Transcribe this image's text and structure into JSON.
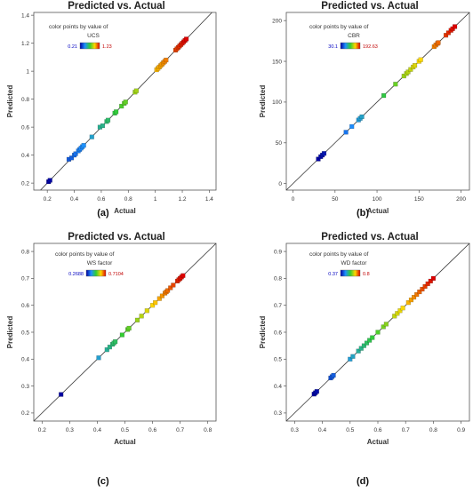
{
  "chart_data": [
    {
      "type": "scatter",
      "panel_label": "(a)",
      "title": "Predicted vs. Actual",
      "xlabel": "Actual",
      "ylabel": "Predicted",
      "xlim": [
        0.1,
        1.45
      ],
      "ylim": [
        0.15,
        1.42
      ],
      "xticks": [
        "0.2",
        "0.4",
        "0.6",
        "0.8",
        "1",
        "1.2",
        "1.4"
      ],
      "yticks": [
        "0.2",
        "0.4",
        "0.6",
        "0.8",
        "1",
        "1.2",
        "1.4"
      ],
      "xtick_values": [
        0.2,
        0.4,
        0.6,
        0.8,
        1.0,
        1.2,
        1.4
      ],
      "ytick_values": [
        0.2,
        0.4,
        0.6,
        0.8,
        1.0,
        1.2,
        1.4
      ],
      "legend_title_1": "color points by value of",
      "legend_title_2": "UCS",
      "colorbar_min": "0.21",
      "colorbar_max": "1.23",
      "cmin": 0.21,
      "cmax": 1.23,
      "x": [
        0.21,
        0.22,
        0.36,
        0.38,
        0.4,
        0.41,
        0.43,
        0.44,
        0.45,
        0.46,
        0.47,
        0.53,
        0.59,
        0.61,
        0.64,
        0.65,
        0.7,
        0.71,
        0.75,
        0.77,
        0.78,
        0.85,
        0.86,
        1.01,
        1.02,
        1.03,
        1.04,
        1.05,
        1.06,
        1.07,
        1.08,
        1.15,
        1.16,
        1.17,
        1.18,
        1.19,
        1.2,
        1.21,
        1.22,
        1.23
      ],
      "y": [
        0.21,
        0.22,
        0.37,
        0.38,
        0.4,
        0.41,
        0.43,
        0.44,
        0.45,
        0.46,
        0.47,
        0.53,
        0.6,
        0.61,
        0.64,
        0.65,
        0.7,
        0.71,
        0.75,
        0.77,
        0.78,
        0.85,
        0.86,
        1.01,
        1.02,
        1.03,
        1.04,
        1.05,
        1.06,
        1.07,
        1.08,
        1.15,
        1.16,
        1.17,
        1.18,
        1.19,
        1.2,
        1.21,
        1.22,
        1.23
      ]
    },
    {
      "type": "scatter",
      "panel_label": "(b)",
      "title": "Predicted vs. Actual",
      "xlabel": "Actual",
      "ylabel": "Predicted",
      "xlim": [
        -8,
        210
      ],
      "ylim": [
        -8,
        210
      ],
      "xticks": [
        "0",
        "50",
        "100",
        "150",
        "200"
      ],
      "yticks": [
        "0",
        "50",
        "100",
        "150",
        "200"
      ],
      "xtick_values": [
        0,
        50,
        100,
        150,
        200
      ],
      "ytick_values": [
        0,
        50,
        100,
        150,
        200
      ],
      "legend_title_1": "color points by value of",
      "legend_title_2": "CBR",
      "colorbar_min": "30.1",
      "colorbar_max": "192.63",
      "cmin": 30.1,
      "cmax": 192.63,
      "x": [
        30.1,
        33,
        35,
        37,
        63,
        70,
        78,
        80,
        82,
        108,
        122,
        132,
        135,
        137,
        140,
        143,
        145,
        150,
        152,
        168,
        170,
        172,
        173,
        182,
        185,
        188,
        190,
        192.63
      ],
      "y": [
        30.1,
        33,
        35,
        37,
        63,
        70,
        78,
        80,
        82,
        108,
        122,
        132,
        135,
        137,
        140,
        143,
        145,
        150,
        152,
        168,
        170,
        172,
        173,
        182,
        185,
        188,
        190,
        192.63
      ]
    },
    {
      "type": "scatter",
      "panel_label": "(c)",
      "title": "Predicted vs. Actual",
      "xlabel": "Actual",
      "ylabel": "Predicted",
      "xlim": [
        0.17,
        0.83
      ],
      "ylim": [
        0.17,
        0.83
      ],
      "xticks": [
        "0.2",
        "0.3",
        "0.4",
        "0.5",
        "0.6",
        "0.7",
        "0.8"
      ],
      "yticks": [
        "0.2",
        "0.3",
        "0.4",
        "0.5",
        "0.6",
        "0.7",
        "0.8"
      ],
      "xtick_values": [
        0.2,
        0.3,
        0.4,
        0.5,
        0.6,
        0.7,
        0.8
      ],
      "ytick_values": [
        0.2,
        0.3,
        0.4,
        0.5,
        0.6,
        0.7,
        0.8
      ],
      "legend_title_1": "color points by value of",
      "legend_title_2": "WS factor",
      "colorbar_min": "0.2688",
      "colorbar_max": "0.7104",
      "cmin": 0.2688,
      "cmax": 0.7104,
      "x": [
        0.2688,
        0.405,
        0.435,
        0.445,
        0.455,
        0.46,
        0.465,
        0.49,
        0.51,
        0.515,
        0.545,
        0.56,
        0.58,
        0.6,
        0.61,
        0.625,
        0.635,
        0.645,
        0.65,
        0.655,
        0.665,
        0.675,
        0.69,
        0.695,
        0.7,
        0.705,
        0.7104
      ],
      "y": [
        0.2688,
        0.405,
        0.435,
        0.445,
        0.455,
        0.46,
        0.465,
        0.49,
        0.51,
        0.515,
        0.545,
        0.56,
        0.58,
        0.6,
        0.61,
        0.625,
        0.635,
        0.645,
        0.65,
        0.655,
        0.665,
        0.675,
        0.69,
        0.695,
        0.7,
        0.705,
        0.7104
      ]
    },
    {
      "type": "scatter",
      "panel_label": "(d)",
      "title": "Predicted vs. Actual",
      "xlabel": "Actual",
      "ylabel": "Predicted",
      "xlim": [
        0.27,
        0.93
      ],
      "ylim": [
        0.27,
        0.93
      ],
      "xticks": [
        "0.3",
        "0.4",
        "0.5",
        "0.6",
        "0.7",
        "0.8",
        "0.9"
      ],
      "yticks": [
        "0.3",
        "0.4",
        "0.5",
        "0.6",
        "0.7",
        "0.8",
        "0.9"
      ],
      "xtick_values": [
        0.3,
        0.4,
        0.5,
        0.6,
        0.7,
        0.8,
        0.9
      ],
      "ytick_values": [
        0.3,
        0.4,
        0.5,
        0.6,
        0.7,
        0.8,
        0.9
      ],
      "legend_title_1": "color points by value of",
      "legend_title_2": "WD factor",
      "colorbar_min": "0.37",
      "colorbar_max": "0.8",
      "cmin": 0.37,
      "cmax": 0.8,
      "x": [
        0.37,
        0.375,
        0.38,
        0.43,
        0.435,
        0.44,
        0.5,
        0.51,
        0.53,
        0.54,
        0.55,
        0.56,
        0.57,
        0.58,
        0.6,
        0.62,
        0.63,
        0.66,
        0.67,
        0.68,
        0.69,
        0.71,
        0.72,
        0.73,
        0.74,
        0.75,
        0.76,
        0.77,
        0.78,
        0.79,
        0.8
      ],
      "y": [
        0.37,
        0.375,
        0.38,
        0.43,
        0.435,
        0.44,
        0.5,
        0.51,
        0.53,
        0.54,
        0.55,
        0.56,
        0.57,
        0.58,
        0.6,
        0.62,
        0.63,
        0.66,
        0.67,
        0.68,
        0.69,
        0.71,
        0.72,
        0.73,
        0.74,
        0.75,
        0.76,
        0.77,
        0.78,
        0.79,
        0.8
      ]
    }
  ]
}
